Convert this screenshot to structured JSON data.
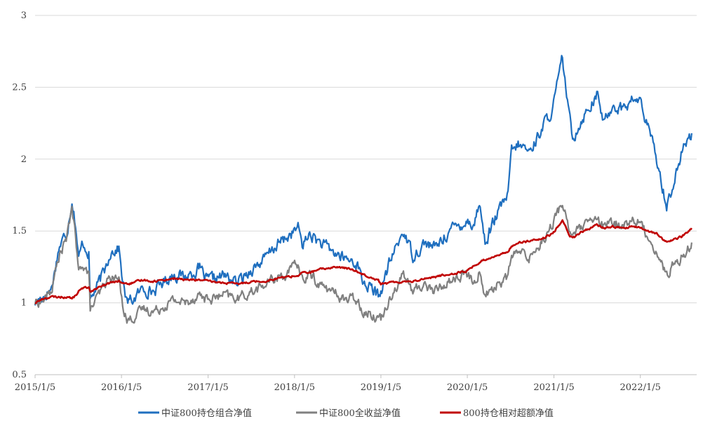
{
  "chart_data": {
    "type": "line",
    "title": "",
    "xlabel": "",
    "ylabel": "",
    "ylim": [
      0.5,
      3
    ],
    "yticks": [
      "0.5",
      "1",
      "1.5",
      "2",
      "2.5",
      "3"
    ],
    "ytick_values": [
      0.5,
      1,
      1.5,
      2,
      2.5,
      3
    ],
    "xlim": [
      "2015-01-05",
      "2022-08-31"
    ],
    "xtick_labels": [
      "2015/1/5",
      "2016/1/5",
      "2017/1/5",
      "2018/1/5",
      "2019/1/5",
      "2020/1/5",
      "2021/1/5",
      "2022/1/5"
    ],
    "xtick_dates": [
      "2015-01-05",
      "2016-01-05",
      "2017-01-05",
      "2018-01-05",
      "2019-01-05",
      "2020-01-05",
      "2021-01-05",
      "2022-01-05"
    ],
    "grid": "horizontal",
    "legend_position": "bottom",
    "series": [
      {
        "name": "中证800持仓组合净值",
        "color": "#1f6fbf",
        "points": [
          [
            "2015-01-05",
            1.0
          ],
          [
            "2015-02-10",
            1.05
          ],
          [
            "2015-03-15",
            1.1
          ],
          [
            "2015-04-15",
            1.38
          ],
          [
            "2015-05-20",
            1.5
          ],
          [
            "2015-06-10",
            1.72
          ],
          [
            "2015-06-25",
            1.55
          ],
          [
            "2015-07-08",
            1.3
          ],
          [
            "2015-07-25",
            1.42
          ],
          [
            "2015-08-20",
            1.35
          ],
          [
            "2015-08-26",
            1.02
          ],
          [
            "2015-09-20",
            1.1
          ],
          [
            "2015-10-25",
            1.22
          ],
          [
            "2015-11-20",
            1.36
          ],
          [
            "2015-12-25",
            1.38
          ],
          [
            "2016-01-10",
            1.15
          ],
          [
            "2016-01-28",
            1.0
          ],
          [
            "2016-02-28",
            1.03
          ],
          [
            "2016-04-05",
            1.1
          ],
          [
            "2016-05-20",
            1.08
          ],
          [
            "2016-07-01",
            1.15
          ],
          [
            "2016-08-15",
            1.2
          ],
          [
            "2016-09-30",
            1.18
          ],
          [
            "2016-11-30",
            1.24
          ],
          [
            "2016-12-31",
            1.15
          ],
          [
            "2017-03-10",
            1.19
          ],
          [
            "2017-05-10",
            1.14
          ],
          [
            "2017-07-10",
            1.24
          ],
          [
            "2017-08-30",
            1.3
          ],
          [
            "2017-10-20",
            1.4
          ],
          [
            "2017-11-30",
            1.45
          ],
          [
            "2018-01-20",
            1.52
          ],
          [
            "2018-02-10",
            1.4
          ],
          [
            "2018-03-10",
            1.48
          ],
          [
            "2018-04-20",
            1.42
          ],
          [
            "2018-06-20",
            1.35
          ],
          [
            "2018-08-15",
            1.3
          ],
          [
            "2018-09-25",
            1.28
          ],
          [
            "2018-10-20",
            1.15
          ],
          [
            "2018-12-25",
            1.05
          ],
          [
            "2019-01-05",
            1.08
          ],
          [
            "2019-02-15",
            1.3
          ],
          [
            "2019-04-10",
            1.5
          ],
          [
            "2019-05-20",
            1.33
          ],
          [
            "2019-07-10",
            1.42
          ],
          [
            "2019-08-20",
            1.38
          ],
          [
            "2019-10-20",
            1.5
          ],
          [
            "2019-12-31",
            1.57
          ],
          [
            "2020-02-04",
            1.55
          ],
          [
            "2020-02-25",
            1.7
          ],
          [
            "2020-03-20",
            1.42
          ],
          [
            "2020-05-05",
            1.6
          ],
          [
            "2020-06-25",
            1.75
          ],
          [
            "2020-07-10",
            2.05
          ],
          [
            "2020-08-10",
            2.1
          ],
          [
            "2020-09-25",
            2.05
          ],
          [
            "2020-11-10",
            2.2
          ],
          [
            "2020-12-31",
            2.35
          ],
          [
            "2021-02-10",
            2.7
          ],
          [
            "2021-03-10",
            2.3
          ],
          [
            "2021-03-25",
            2.15
          ],
          [
            "2021-05-10",
            2.3
          ],
          [
            "2021-07-05",
            2.45
          ],
          [
            "2021-08-05",
            2.25
          ],
          [
            "2021-09-10",
            2.38
          ],
          [
            "2021-10-20",
            2.35
          ],
          [
            "2021-12-10",
            2.42
          ],
          [
            "2022-01-05",
            2.4
          ],
          [
            "2022-02-10",
            2.2
          ],
          [
            "2022-03-15",
            2.0
          ],
          [
            "2022-04-26",
            1.68
          ],
          [
            "2022-05-20",
            1.8
          ],
          [
            "2022-06-30",
            2.05
          ],
          [
            "2022-08-10",
            2.18
          ]
        ]
      },
      {
        "name": "中证800全收益净值",
        "color": "#808080",
        "points": [
          [
            "2015-01-05",
            1.0
          ],
          [
            "2015-02-10",
            1.02
          ],
          [
            "2015-03-15",
            1.08
          ],
          [
            "2015-04-15",
            1.32
          ],
          [
            "2015-05-20",
            1.45
          ],
          [
            "2015-06-10",
            1.68
          ],
          [
            "2015-06-25",
            1.45
          ],
          [
            "2015-07-08",
            1.2
          ],
          [
            "2015-07-25",
            1.28
          ],
          [
            "2015-08-20",
            1.2
          ],
          [
            "2015-08-26",
            0.95
          ],
          [
            "2015-09-20",
            1.02
          ],
          [
            "2015-10-25",
            1.12
          ],
          [
            "2015-11-20",
            1.18
          ],
          [
            "2015-12-25",
            1.16
          ],
          [
            "2016-01-10",
            1.0
          ],
          [
            "2016-01-28",
            0.88
          ],
          [
            "2016-02-28",
            0.9
          ],
          [
            "2016-04-05",
            0.96
          ],
          [
            "2016-05-20",
            0.94
          ],
          [
            "2016-07-01",
            0.98
          ],
          [
            "2016-08-15",
            1.02
          ],
          [
            "2016-09-30",
            1.0
          ],
          [
            "2016-11-30",
            1.06
          ],
          [
            "2016-12-31",
            1.02
          ],
          [
            "2017-03-10",
            1.05
          ],
          [
            "2017-05-10",
            1.03
          ],
          [
            "2017-07-10",
            1.08
          ],
          [
            "2017-08-30",
            1.12
          ],
          [
            "2017-10-20",
            1.18
          ],
          [
            "2017-11-30",
            1.2
          ],
          [
            "2018-01-20",
            1.27
          ],
          [
            "2018-02-10",
            1.15
          ],
          [
            "2018-03-10",
            1.2
          ],
          [
            "2018-04-20",
            1.13
          ],
          [
            "2018-06-20",
            1.07
          ],
          [
            "2018-08-15",
            1.02
          ],
          [
            "2018-09-25",
            1.03
          ],
          [
            "2018-10-20",
            0.95
          ],
          [
            "2018-12-25",
            0.9
          ],
          [
            "2019-01-05",
            0.89
          ],
          [
            "2019-02-15",
            1.05
          ],
          [
            "2019-04-10",
            1.2
          ],
          [
            "2019-05-20",
            1.08
          ],
          [
            "2019-07-10",
            1.13
          ],
          [
            "2019-08-20",
            1.08
          ],
          [
            "2019-10-20",
            1.15
          ],
          [
            "2019-12-31",
            1.2
          ],
          [
            "2020-02-04",
            1.14
          ],
          [
            "2020-02-25",
            1.22
          ],
          [
            "2020-03-20",
            1.05
          ],
          [
            "2020-05-05",
            1.12
          ],
          [
            "2020-06-25",
            1.18
          ],
          [
            "2020-07-10",
            1.33
          ],
          [
            "2020-08-10",
            1.35
          ],
          [
            "2020-09-25",
            1.32
          ],
          [
            "2020-11-10",
            1.42
          ],
          [
            "2020-12-31",
            1.55
          ],
          [
            "2021-02-10",
            1.7
          ],
          [
            "2021-03-10",
            1.52
          ],
          [
            "2021-03-25",
            1.48
          ],
          [
            "2021-05-10",
            1.53
          ],
          [
            "2021-07-05",
            1.58
          ],
          [
            "2021-08-05",
            1.52
          ],
          [
            "2021-09-10",
            1.56
          ],
          [
            "2021-10-20",
            1.54
          ],
          [
            "2021-12-10",
            1.58
          ],
          [
            "2022-01-05",
            1.55
          ],
          [
            "2022-02-10",
            1.45
          ],
          [
            "2022-03-15",
            1.35
          ],
          [
            "2022-04-26",
            1.19
          ],
          [
            "2022-05-20",
            1.25
          ],
          [
            "2022-06-30",
            1.32
          ],
          [
            "2022-08-10",
            1.42
          ]
        ]
      },
      {
        "name": "800持仓相对超额净值",
        "color": "#c00000",
        "points": [
          [
            "2015-01-05",
            1.0
          ],
          [
            "2015-02-10",
            1.03
          ],
          [
            "2015-03-15",
            1.04
          ],
          [
            "2015-04-15",
            1.04
          ],
          [
            "2015-05-20",
            1.04
          ],
          [
            "2015-06-10",
            1.03
          ],
          [
            "2015-06-25",
            1.05
          ],
          [
            "2015-07-08",
            1.08
          ],
          [
            "2015-07-25",
            1.1
          ],
          [
            "2015-08-20",
            1.11
          ],
          [
            "2015-08-26",
            1.08
          ],
          [
            "2015-09-20",
            1.1
          ],
          [
            "2015-10-25",
            1.12
          ],
          [
            "2015-11-20",
            1.14
          ],
          [
            "2015-12-25",
            1.15
          ],
          [
            "2016-01-10",
            1.14
          ],
          [
            "2016-01-28",
            1.13
          ],
          [
            "2016-02-28",
            1.14
          ],
          [
            "2016-04-05",
            1.16
          ],
          [
            "2016-05-20",
            1.15
          ],
          [
            "2016-07-01",
            1.16
          ],
          [
            "2016-08-15",
            1.17
          ],
          [
            "2016-09-30",
            1.16
          ],
          [
            "2016-11-30",
            1.16
          ],
          [
            "2016-12-31",
            1.15
          ],
          [
            "2017-03-10",
            1.14
          ],
          [
            "2017-05-10",
            1.13
          ],
          [
            "2017-07-10",
            1.15
          ],
          [
            "2017-08-30",
            1.15
          ],
          [
            "2017-10-20",
            1.17
          ],
          [
            "2017-11-30",
            1.18
          ],
          [
            "2018-01-20",
            1.19
          ],
          [
            "2018-02-10",
            1.21
          ],
          [
            "2018-03-10",
            1.21
          ],
          [
            "2018-04-20",
            1.23
          ],
          [
            "2018-06-20",
            1.25
          ],
          [
            "2018-08-15",
            1.24
          ],
          [
            "2018-09-25",
            1.22
          ],
          [
            "2018-10-20",
            1.2
          ],
          [
            "2018-12-25",
            1.16
          ],
          [
            "2019-01-05",
            1.13
          ],
          [
            "2019-02-15",
            1.14
          ],
          [
            "2019-04-10",
            1.15
          ],
          [
            "2019-05-20",
            1.15
          ],
          [
            "2019-07-10",
            1.17
          ],
          [
            "2019-08-20",
            1.18
          ],
          [
            "2019-10-20",
            1.2
          ],
          [
            "2019-12-31",
            1.22
          ],
          [
            "2020-02-04",
            1.26
          ],
          [
            "2020-02-25",
            1.28
          ],
          [
            "2020-03-20",
            1.3
          ],
          [
            "2020-05-05",
            1.33
          ],
          [
            "2020-06-25",
            1.35
          ],
          [
            "2020-07-10",
            1.4
          ],
          [
            "2020-08-10",
            1.42
          ],
          [
            "2020-09-25",
            1.43
          ],
          [
            "2020-11-10",
            1.44
          ],
          [
            "2020-12-31",
            1.48
          ],
          [
            "2021-02-10",
            1.58
          ],
          [
            "2021-03-10",
            1.47
          ],
          [
            "2021-03-25",
            1.45
          ],
          [
            "2021-05-10",
            1.5
          ],
          [
            "2021-07-05",
            1.54
          ],
          [
            "2021-08-05",
            1.52
          ],
          [
            "2021-09-10",
            1.53
          ],
          [
            "2021-10-20",
            1.52
          ],
          [
            "2021-12-10",
            1.53
          ],
          [
            "2022-01-05",
            1.52
          ],
          [
            "2022-02-10",
            1.5
          ],
          [
            "2022-03-15",
            1.48
          ],
          [
            "2022-04-26",
            1.42
          ],
          [
            "2022-05-20",
            1.44
          ],
          [
            "2022-06-30",
            1.46
          ],
          [
            "2022-08-10",
            1.52
          ]
        ]
      }
    ]
  }
}
